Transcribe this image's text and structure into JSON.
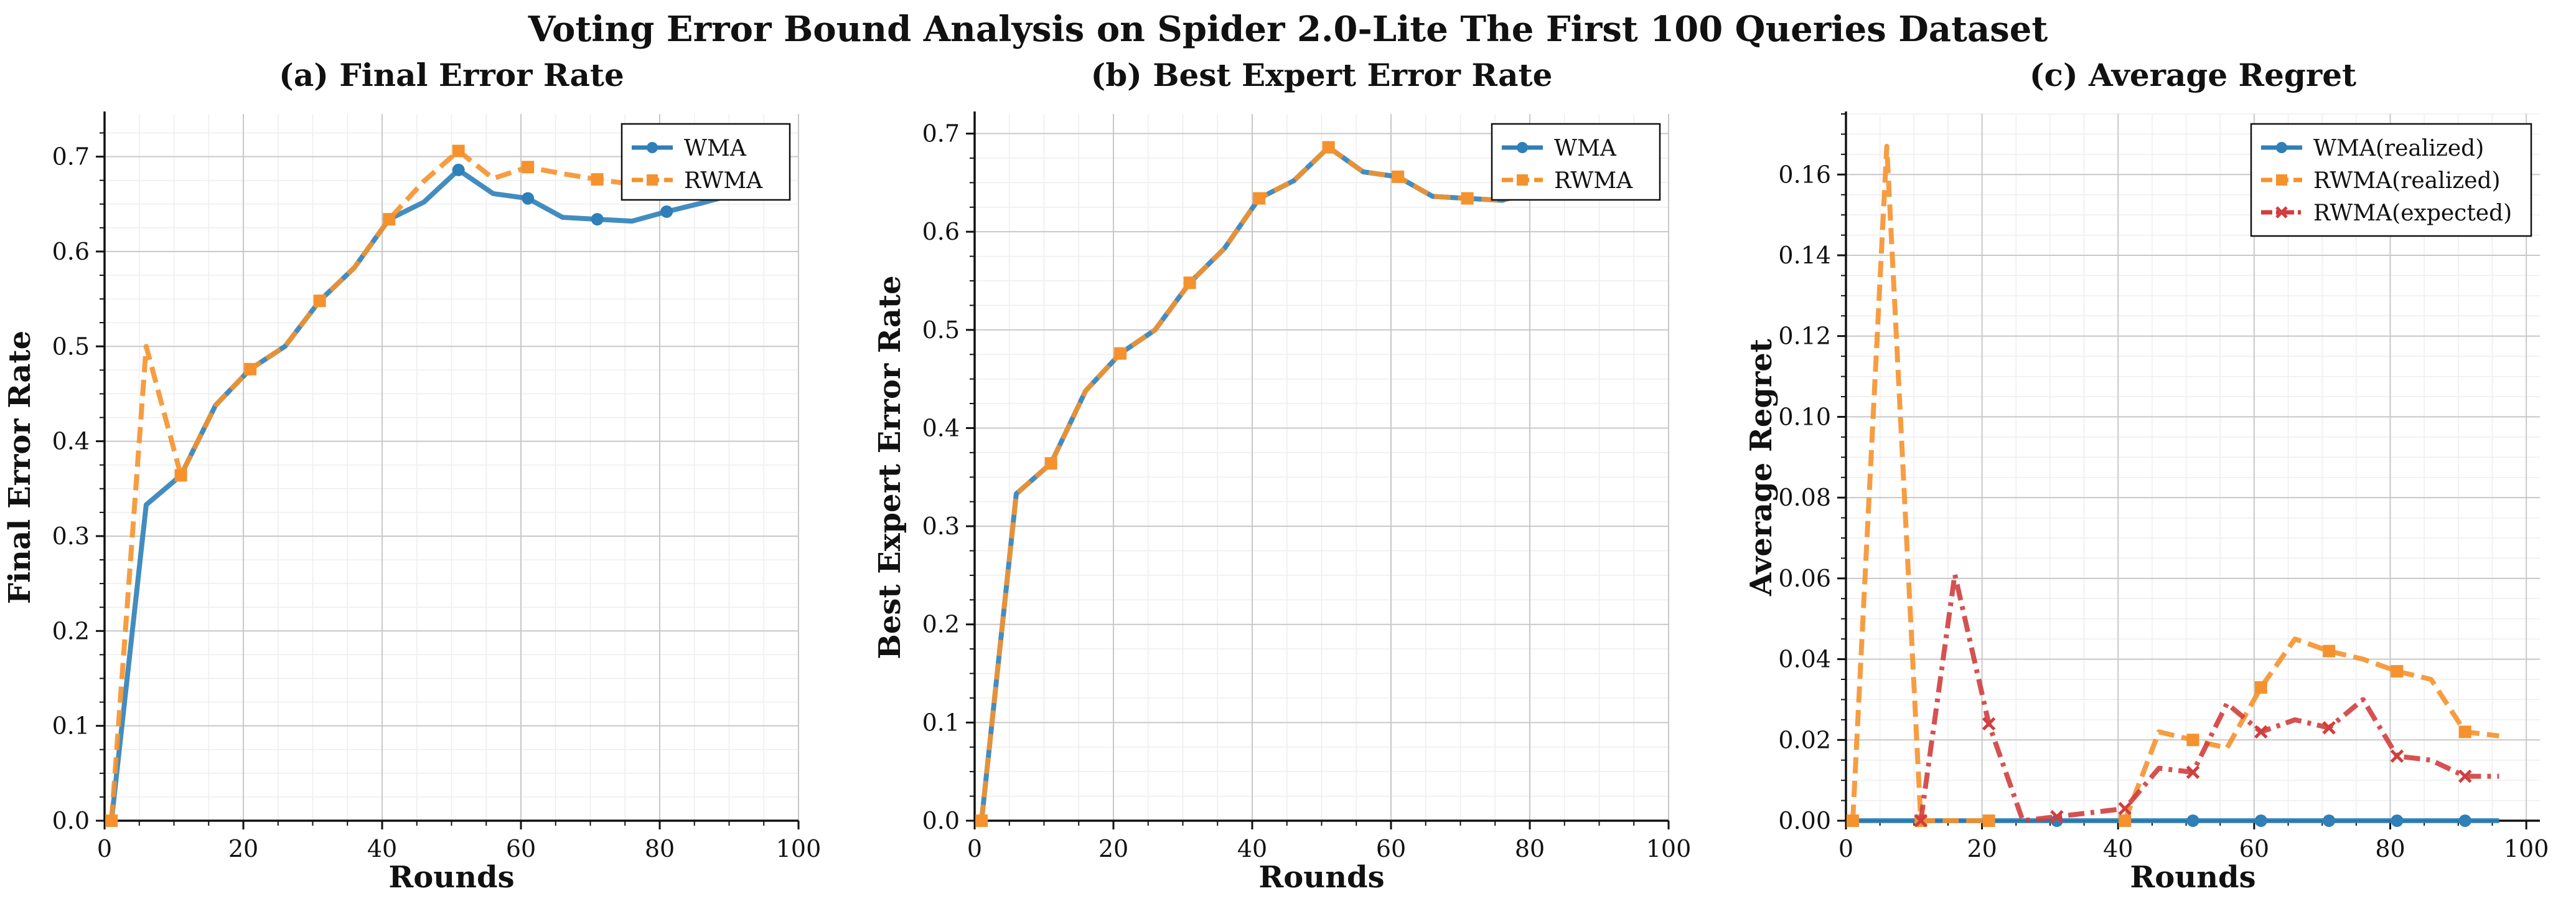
{
  "title": "Voting Error Bound Analysis on Spider 2.0-Lite The First 100 Queries Dataset",
  "colors": {
    "blue": "#2f7fb8",
    "orange": "#f5922e",
    "red": "#d13e3e",
    "grid": "#c8c8c8",
    "grid_minor": "#eeeeee"
  },
  "chart_data": [
    {
      "type": "line",
      "title": "(a) Final Error Rate",
      "xlabel": "Rounds",
      "ylabel": "Final Error Rate",
      "xlim": [
        0,
        100
      ],
      "ylim": [
        0,
        0.745
      ],
      "xticks": [
        0,
        20,
        40,
        60,
        80,
        100
      ],
      "yticks": [
        0.0,
        0.1,
        0.2,
        0.3,
        0.4,
        0.5,
        0.6,
        0.7
      ],
      "ytick_format": 1,
      "grid": true,
      "legend_position": "top-right",
      "x": [
        1,
        6,
        11,
        16,
        21,
        26,
        31,
        36,
        41,
        46,
        51,
        56,
        61,
        66,
        71,
        76,
        81,
        86,
        91,
        96
      ],
      "series": [
        {
          "name": "WMA",
          "color": "blue",
          "style": "solid",
          "marker": "circle",
          "values": [
            0.0,
            0.333,
            0.364,
            0.438,
            0.476,
            0.5,
            0.548,
            0.583,
            0.634,
            0.652,
            0.686,
            0.661,
            0.656,
            0.636,
            0.634,
            0.632,
            0.642,
            0.651,
            0.661,
            0.67
          ]
        },
        {
          "name": "RWMA",
          "color": "orange",
          "style": "dashed",
          "marker": "square",
          "values": [
            0.0,
            0.5,
            0.364,
            0.438,
            0.476,
            0.5,
            0.548,
            0.583,
            0.634,
            0.674,
            0.706,
            0.677,
            0.689,
            0.682,
            0.676,
            0.671,
            0.667,
            0.674,
            0.681,
            0.687
          ]
        }
      ]
    },
    {
      "type": "line",
      "title": "(b) Best Expert Error Rate",
      "xlabel": "Rounds",
      "ylabel": "Best Expert Error Rate",
      "xlim": [
        0,
        100
      ],
      "ylim": [
        0,
        0.72
      ],
      "xticks": [
        0,
        20,
        40,
        60,
        80,
        100
      ],
      "yticks": [
        0.0,
        0.1,
        0.2,
        0.3,
        0.4,
        0.5,
        0.6,
        0.7
      ],
      "ytick_format": 1,
      "grid": true,
      "legend_position": "top-right",
      "x": [
        1,
        6,
        11,
        16,
        21,
        26,
        31,
        36,
        41,
        46,
        51,
        56,
        61,
        66,
        71,
        76,
        81,
        86,
        91,
        96
      ],
      "series": [
        {
          "name": "WMA",
          "color": "blue",
          "style": "solid",
          "marker": "circle",
          "values": [
            0.0,
            0.333,
            0.364,
            0.438,
            0.476,
            0.5,
            0.548,
            0.583,
            0.634,
            0.652,
            0.686,
            0.661,
            0.656,
            0.636,
            0.634,
            0.632,
            0.642,
            0.651,
            0.661,
            0.67
          ]
        },
        {
          "name": "RWMA",
          "color": "orange",
          "style": "dashed",
          "marker": "square",
          "values": [
            0.0,
            0.333,
            0.364,
            0.438,
            0.476,
            0.5,
            0.548,
            0.583,
            0.634,
            0.652,
            0.686,
            0.661,
            0.656,
            0.636,
            0.634,
            0.632,
            0.642,
            0.651,
            0.661,
            0.67
          ]
        }
      ]
    },
    {
      "type": "line",
      "title": "(c) Average Regret",
      "xlabel": "Rounds",
      "ylabel": "Average Regret",
      "xlim": [
        0,
        102
      ],
      "ylim": [
        0,
        0.175
      ],
      "xticks": [
        0,
        20,
        40,
        60,
        80,
        100
      ],
      "yticks": [
        0.0,
        0.02,
        0.04,
        0.06,
        0.08,
        0.1,
        0.12,
        0.14,
        0.16
      ],
      "ytick_format": 2,
      "grid": true,
      "legend_position": "top-right",
      "x": [
        1,
        6,
        11,
        16,
        21,
        26,
        31,
        36,
        41,
        46,
        51,
        56,
        61,
        66,
        71,
        76,
        81,
        86,
        91,
        96
      ],
      "series": [
        {
          "name": "WMA(realized)",
          "color": "blue",
          "style": "solid",
          "marker": "circle",
          "values": [
            0,
            0,
            0,
            0,
            0,
            0,
            0,
            0,
            0,
            0,
            0,
            0,
            0,
            0,
            0,
            0,
            0,
            0,
            0,
            0
          ]
        },
        {
          "name": "RWMA(realized)",
          "color": "orange",
          "style": "dashed",
          "marker": "square",
          "values": [
            0.0,
            0.167,
            0.0,
            0.0,
            0.0,
            null,
            null,
            null,
            0.0,
            0.022,
            0.02,
            0.018,
            0.033,
            0.045,
            0.042,
            0.04,
            0.037,
            0.035,
            0.022,
            0.021
          ]
        },
        {
          "name": "RWMA(expected)",
          "color": "red",
          "style": "dashdot",
          "marker": "x",
          "values": [
            null,
            null,
            0.0,
            0.061,
            0.024,
            0.0,
            0.001,
            0.002,
            0.003,
            0.013,
            0.012,
            0.029,
            0.022,
            0.025,
            0.023,
            0.03,
            0.016,
            0.015,
            0.011,
            0.011
          ]
        }
      ]
    }
  ]
}
